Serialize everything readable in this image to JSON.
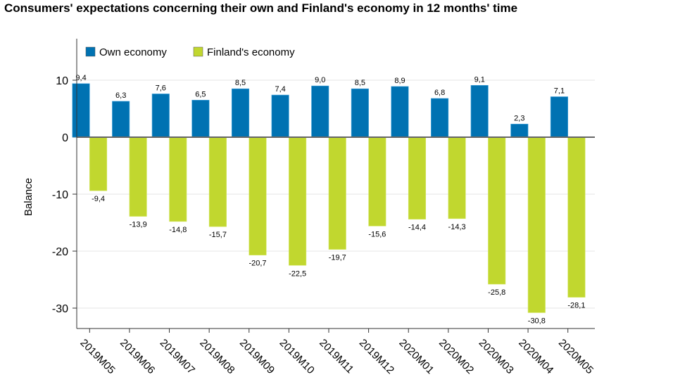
{
  "chart_data": {
    "type": "bar",
    "title": "Consumers' expectations concerning their own and Finland's economy in 12 months' time",
    "xlabel": "",
    "ylabel": "Balance",
    "ylim": [
      -34,
      17
    ],
    "yticks": [
      10,
      0,
      -10,
      -20,
      -30
    ],
    "grid": true,
    "legend": "top-left",
    "categories": [
      "2019M05",
      "2019M06",
      "2019M07",
      "2019M08",
      "2019M09",
      "2019M10",
      "2019M11",
      "2019M12",
      "2020M01",
      "2020M02",
      "2020M03",
      "2020M04",
      "2020M05"
    ],
    "series": [
      {
        "name": "Own economy",
        "color": "#0072b2",
        "values": [
          9.4,
          6.3,
          7.6,
          6.5,
          8.5,
          7.4,
          9.0,
          8.5,
          8.9,
          6.8,
          9.1,
          2.3,
          7.1
        ],
        "labels": [
          "9,4",
          "6,3",
          "7,6",
          "6,5",
          "8,5",
          "7,4",
          "9,0",
          "8,5",
          "8,9",
          "6,8",
          "9,1",
          "2,3",
          "7,1"
        ]
      },
      {
        "name": "Finland's economy",
        "color": "#c1d72f",
        "values": [
          -9.4,
          -13.9,
          -14.8,
          -15.7,
          -20.7,
          -22.5,
          -19.7,
          -15.6,
          -14.4,
          -14.3,
          -25.8,
          -30.8,
          -28.1
        ],
        "labels": [
          "-9,4",
          "-13,9",
          "-14,8",
          "-15,7",
          "-20,7",
          "-22,5",
          "-19,7",
          "-15,6",
          "-14,4",
          "-14,3",
          "-25,8",
          "-30,8",
          "-28,1"
        ]
      }
    ]
  }
}
